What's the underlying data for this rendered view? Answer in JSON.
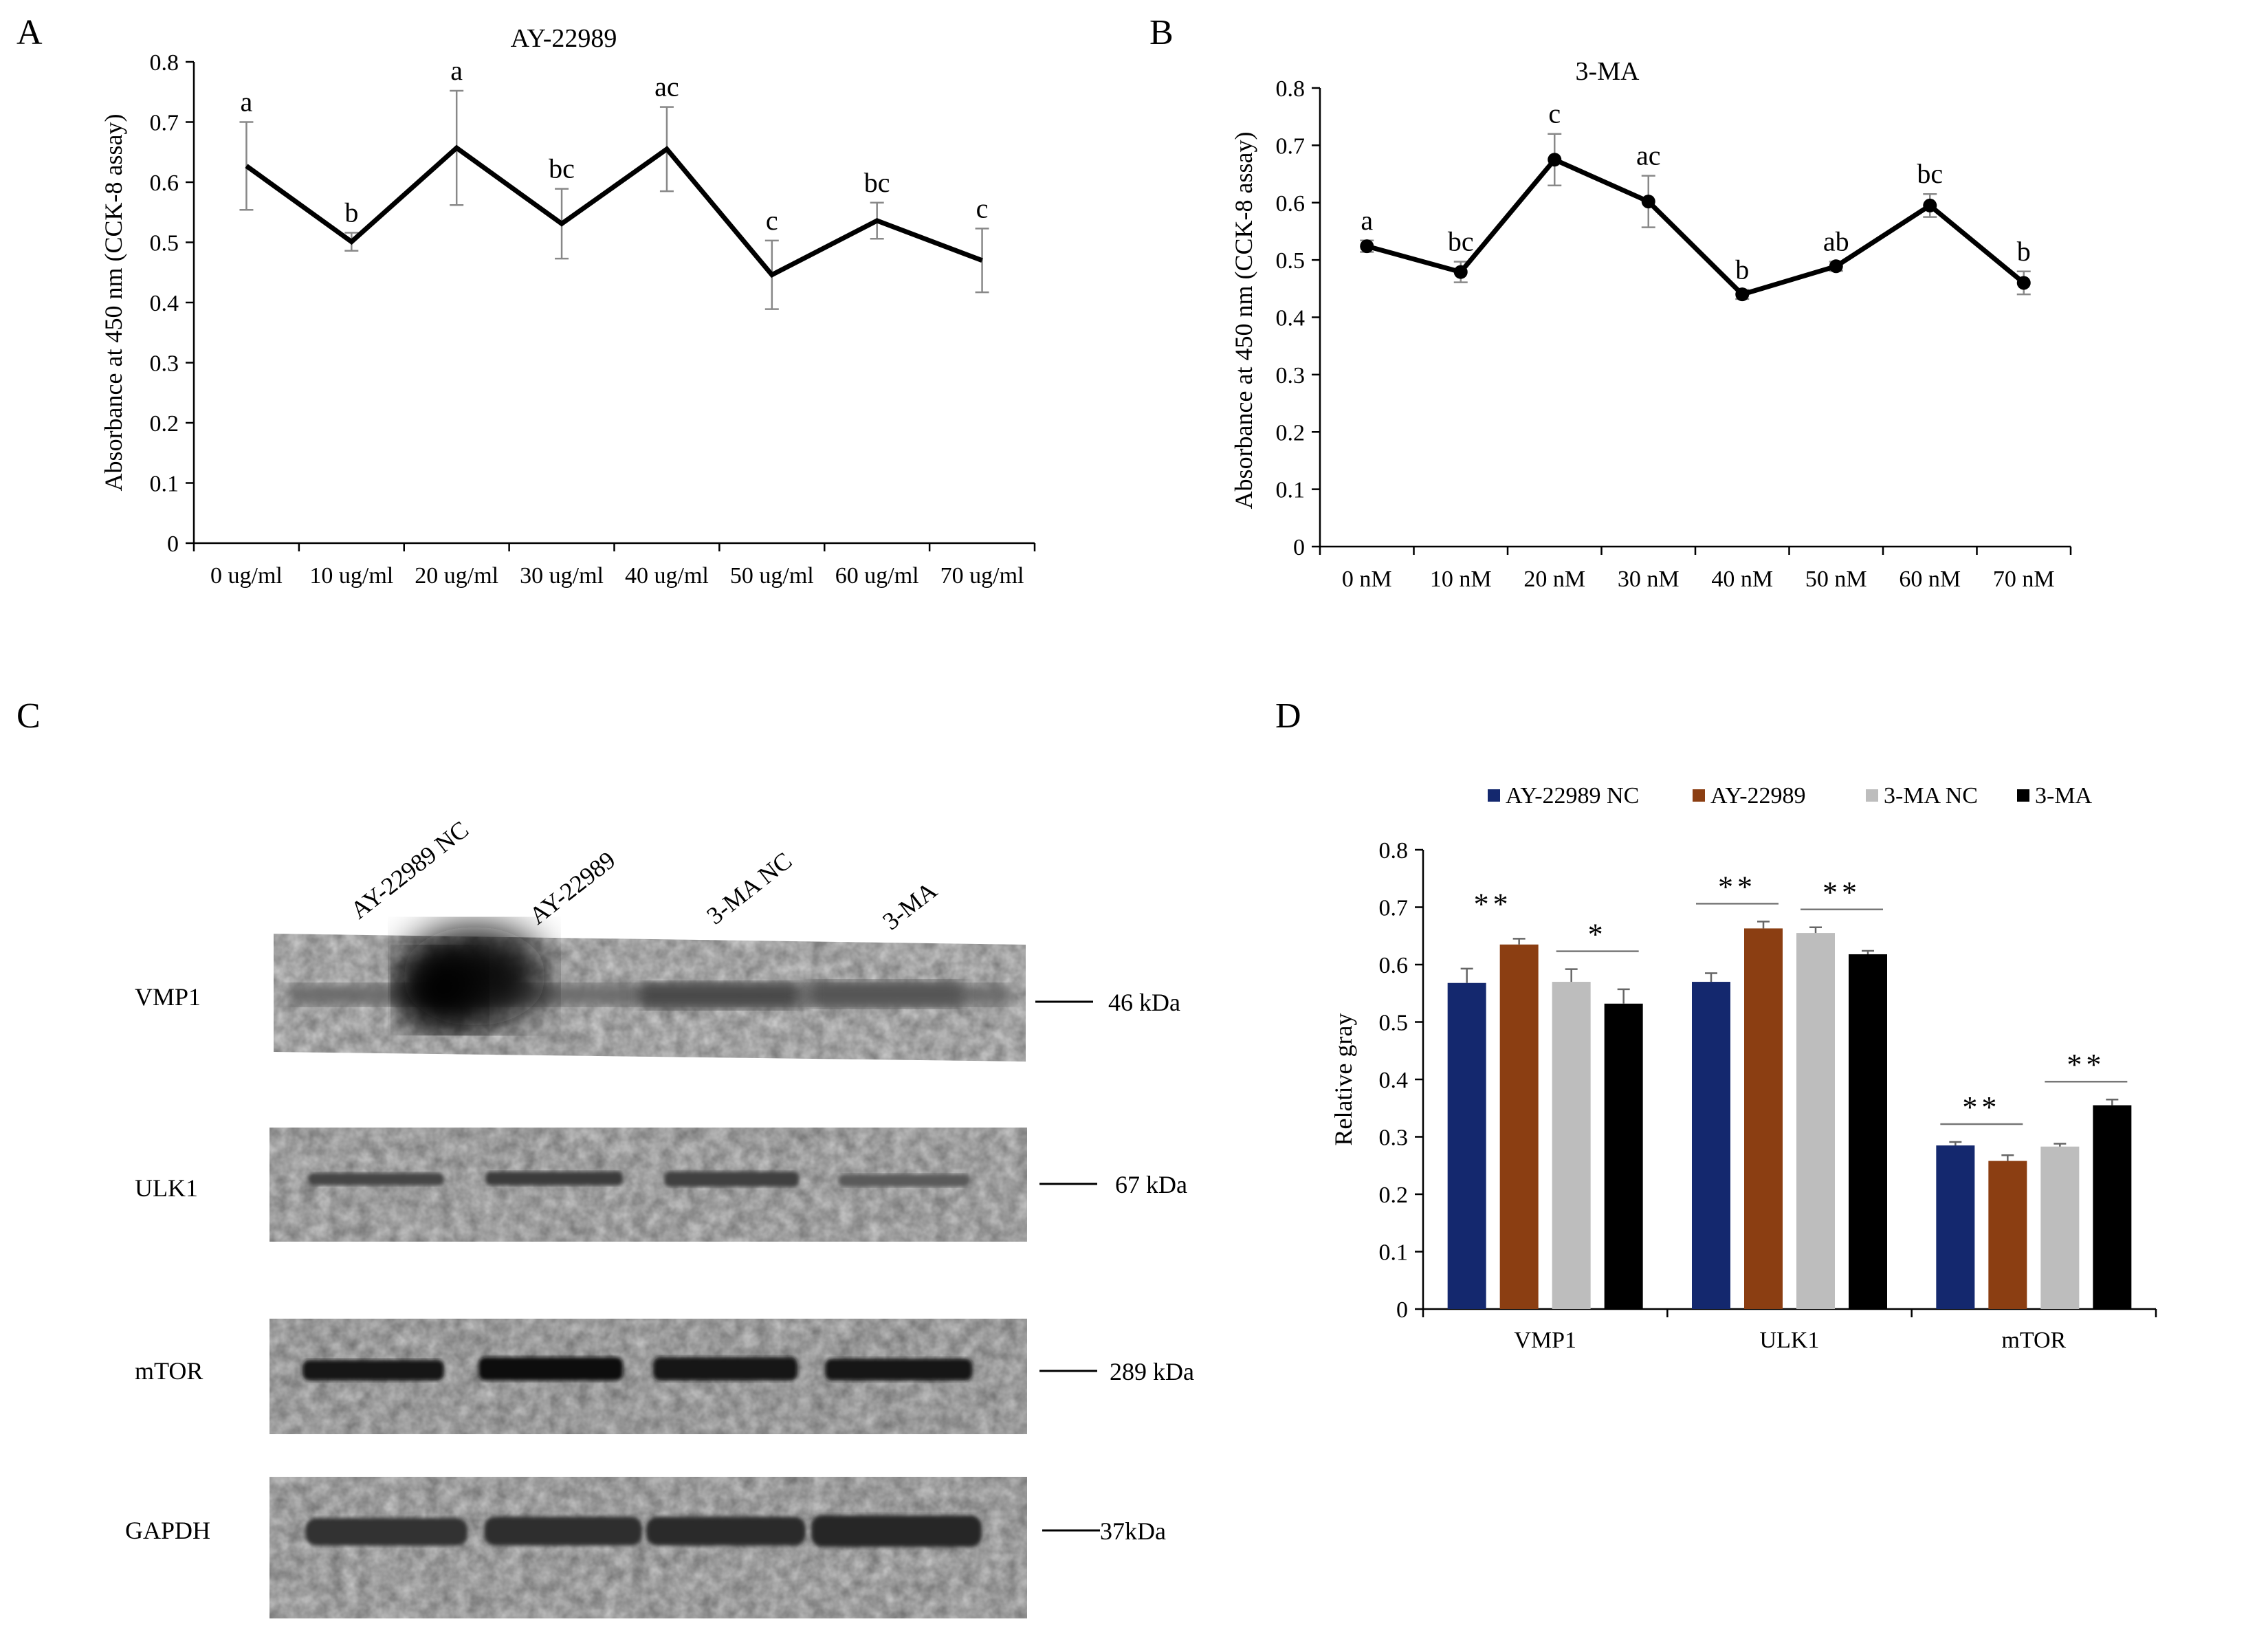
{
  "chart_data": [
    {
      "panel": "A",
      "type": "line",
      "title": "AY-22989",
      "ylabel": "Absorbance at 450 nm (CCK-8 assay)",
      "xlabel": "",
      "ylim": [
        0,
        0.8
      ],
      "yticks": [
        "0",
        "0.1",
        "0.2",
        "0.3",
        "0.4",
        "0.5",
        "0.6",
        "0.7",
        "0.8"
      ],
      "categories": [
        "0 ug/ml",
        "10 ug/ml",
        "20 ug/ml",
        "30 ug/ml",
        "40 ug/ml",
        "50 ug/ml",
        "60 ug/ml",
        "70 ug/ml"
      ],
      "values": [
        0.627,
        0.501,
        0.657,
        0.531,
        0.655,
        0.446,
        0.536,
        0.47
      ],
      "errors": [
        0.073,
        0.015,
        0.095,
        0.058,
        0.07,
        0.057,
        0.03,
        0.053
      ],
      "annotations": [
        "a",
        "b",
        "a",
        "bc",
        "ac",
        "c",
        "bc",
        "c"
      ],
      "markers": false
    },
    {
      "panel": "B",
      "type": "line",
      "title": "3-MA",
      "ylabel": "Absorbance at 450 nm (CCK-8 assay)",
      "xlabel": "",
      "ylim": [
        0,
        0.8
      ],
      "yticks": [
        "0",
        "0.1",
        "0.2",
        "0.3",
        "0.4",
        "0.5",
        "0.6",
        "0.7",
        "0.8"
      ],
      "categories": [
        "0 nM",
        "10 nM",
        "20 nM",
        "30 nM",
        "40 nM",
        "50 nM",
        "60 nM",
        "70 nM"
      ],
      "values": [
        0.524,
        0.479,
        0.675,
        0.602,
        0.44,
        0.489,
        0.595,
        0.46
      ],
      "errors": [
        0.01,
        0.018,
        0.045,
        0.045,
        0.008,
        0.008,
        0.02,
        0.02
      ],
      "annotations": [
        "a",
        "bc",
        "c",
        "ac",
        "b",
        "ab",
        "bc",
        "b"
      ],
      "markers": true
    },
    {
      "panel": "D",
      "type": "bar",
      "title": "",
      "ylabel": "Relative gray",
      "xlabel": "",
      "ylim": [
        0,
        0.8
      ],
      "yticks": [
        "0",
        "0.1",
        "0.2",
        "0.3",
        "0.4",
        "0.5",
        "0.6",
        "0.7",
        "0.8"
      ],
      "categories": [
        "VMP1",
        "ULK1",
        "mTOR"
      ],
      "legend_position": "top",
      "series": [
        {
          "name": "AY-22989 NC",
          "color": "#14286e",
          "values": [
            0.568,
            0.57,
            0.285
          ],
          "errors": [
            0.025,
            0.015,
            0.006
          ]
        },
        {
          "name": "AY-22989",
          "color": "#8b3e12",
          "values": [
            0.635,
            0.663,
            0.258
          ],
          "errors": [
            0.01,
            0.012,
            0.01
          ]
        },
        {
          "name": "3-MA NC",
          "color": "#bdbdbd",
          "values": [
            0.57,
            0.655,
            0.283
          ],
          "errors": [
            0.022,
            0.01,
            0.005
          ]
        },
        {
          "name": "3-MA",
          "color": "#000000",
          "values": [
            0.532,
            0.618,
            0.355
          ],
          "errors": [
            0.025,
            0.006,
            0.01
          ]
        }
      ],
      "significance": [
        {
          "category": "VMP1",
          "pair": [
            0,
            1
          ],
          "label": "**",
          "bracket": false
        },
        {
          "category": "VMP1",
          "pair": [
            2,
            3
          ],
          "label": "*",
          "bracket": true
        },
        {
          "category": "ULK1",
          "pair": [
            0,
            1
          ],
          "label": "**",
          "bracket": true
        },
        {
          "category": "ULK1",
          "pair": [
            2,
            3
          ],
          "label": "**",
          "bracket": true
        },
        {
          "category": "mTOR",
          "pair": [
            0,
            1
          ],
          "label": "**",
          "bracket": true
        },
        {
          "category": "mTOR",
          "pair": [
            2,
            3
          ],
          "label": "**",
          "bracket": true
        }
      ]
    }
  ],
  "panels": {
    "a": "A",
    "b": "B",
    "c": "C",
    "d": "D"
  },
  "blot": {
    "lanes": [
      "AY-22989 NC",
      "AY-22989",
      "3-MA NC",
      "3-MA"
    ],
    "rows": [
      {
        "protein": "VMP1",
        "size": "46 kDa"
      },
      {
        "protein": "ULK1",
        "size": "67 kDa"
      },
      {
        "protein": "mTOR",
        "size": "289 kDa"
      },
      {
        "protein": "GAPDH",
        "size": "37kDa"
      }
    ]
  }
}
